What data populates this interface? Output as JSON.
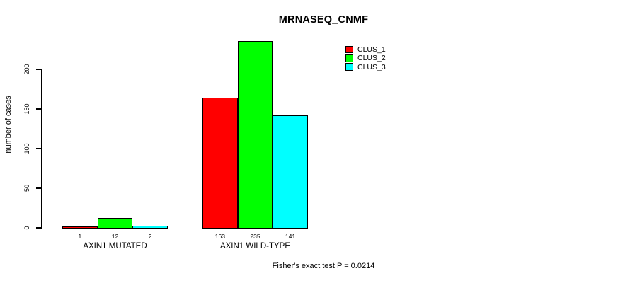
{
  "figure": {
    "background": "#FFFFFF",
    "text_color": "#000000"
  },
  "chart_data": {
    "type": "bar",
    "title": "MRNASEQ_CNMF",
    "ylabel": "number of cases",
    "xlabel": "",
    "ylim": [
      0,
      235
    ],
    "yticks": [
      0,
      50,
      100,
      150,
      200
    ],
    "grid": false,
    "legend_position": "top-right",
    "footnote": "Fisher's exact test P = 0.0214",
    "categories": [
      "AXIN1 MUTATED",
      "AXIN1 WILD-TYPE"
    ],
    "series": [
      {
        "name": "CLUS_1",
        "color": "#FF0000",
        "values": [
          1,
          163
        ]
      },
      {
        "name": "CLUS_2",
        "color": "#00FF00",
        "values": [
          12,
          235
        ]
      },
      {
        "name": "CLUS_3",
        "color": "#00FFFF",
        "values": [
          2,
          141
        ]
      }
    ],
    "groups": [
      {
        "label": "AXIN1 MUTATED",
        "bars": [
          {
            "cluster": "CLUS_1",
            "value": 1,
            "color": "#FF0000"
          },
          {
            "cluster": "CLUS_2",
            "value": 12,
            "color": "#00FF00"
          },
          {
            "cluster": "CLUS_3",
            "value": 2,
            "color": "#00FFFF"
          }
        ]
      },
      {
        "label": "AXIN1 WILD-TYPE",
        "bars": [
          {
            "cluster": "CLUS_1",
            "value": 163,
            "color": "#FF0000"
          },
          {
            "cluster": "CLUS_2",
            "value": 235,
            "color": "#00FF00"
          },
          {
            "cluster": "CLUS_3",
            "value": 141,
            "color": "#00FFFF"
          }
        ]
      }
    ],
    "legend": [
      {
        "label": "CLUS_1",
        "color": "#FF0000"
      },
      {
        "label": "CLUS_2",
        "color": "#00FF00"
      },
      {
        "label": "CLUS_3",
        "color": "#00FFFF"
      }
    ]
  }
}
